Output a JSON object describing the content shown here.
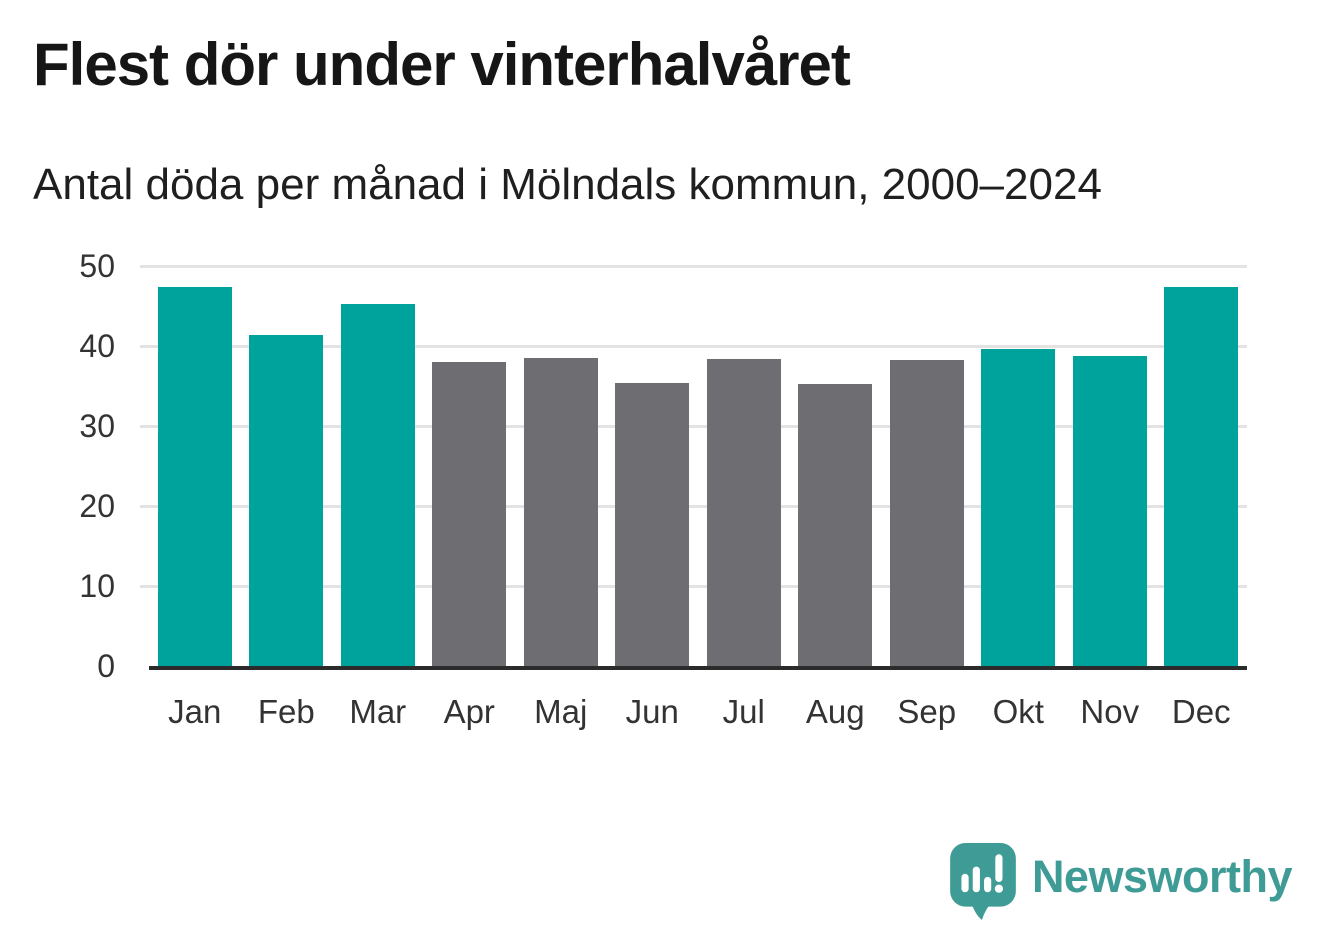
{
  "chart_data": {
    "type": "bar",
    "title": "Flest dör under vinterhalvåret",
    "subtitle": "Antal döda per månad i Mölndals kommun, 2000–2024",
    "categories": [
      "Jan",
      "Feb",
      "Mar",
      "Apr",
      "Maj",
      "Jun",
      "Jul",
      "Aug",
      "Sep",
      "Okt",
      "Nov",
      "Dec"
    ],
    "values": [
      47.4,
      41.4,
      45.3,
      38.0,
      38.5,
      35.4,
      38.4,
      35.3,
      38.2,
      39.6,
      38.8,
      47.4
    ],
    "bar_colors": [
      "teal",
      "teal",
      "teal",
      "gray",
      "gray",
      "gray",
      "gray",
      "gray",
      "gray",
      "teal",
      "teal",
      "teal"
    ],
    "xlabel": "",
    "ylabel": "",
    "ylim": [
      0,
      50
    ],
    "yticks": [
      0,
      10,
      20,
      30,
      40,
      50
    ],
    "grid": "horizontal-only",
    "legend": "none",
    "colors": {
      "teal": "#00a39b",
      "gray": "#6d6d72",
      "grid": "#e3e3e3",
      "axis": "#2b2b2b",
      "tick": "#333333",
      "title": "#161616",
      "subtitle": "#1f1f1f"
    }
  },
  "footer": {
    "brand": "Newsworthy",
    "brand_color": "#3f9b95",
    "logo_icon": "speech-bubble-with-bar-chart-and-exclamation"
  }
}
